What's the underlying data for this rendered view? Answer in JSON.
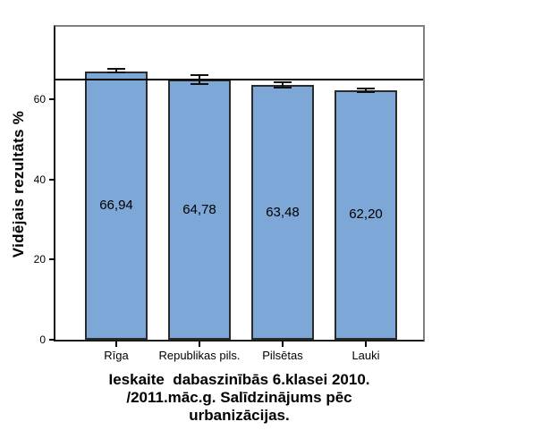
{
  "figure": {
    "background": "#ffffff"
  },
  "chart_data": {
    "type": "bar",
    "categories": [
      "Rīga",
      "Republikas pils.",
      "Pilsētas",
      "Lauki"
    ],
    "values": [
      66.94,
      64.78,
      63.48,
      62.2
    ],
    "value_labels": [
      "66,94",
      "64,78",
      "63,48",
      "62,20"
    ],
    "errors": [
      0.7,
      1.3,
      0.9,
      0.7
    ],
    "title": "Ieskaite dabaszinībās 6.klasei 2010./2011.māc.g. Salīdzinājums pēc urbanizācijas.",
    "title_lines": [
      "Ieskaite  dabaszinībās 6.klasei 2010.",
      "/2011.māc.g. Salīdzinājums pēc",
      "urbanizācijas."
    ],
    "ylabel": "Vidējais rezultāts %",
    "xlabel": "",
    "yticks": [
      0,
      20,
      40,
      60
    ],
    "ylim": [
      0,
      78
    ],
    "reference_line": 64.8,
    "grid": false,
    "legend": false,
    "colors": {
      "bar_fill": "#7CA7D6",
      "bar_border": "#2b2b2b",
      "axis": "#000000",
      "frame": "#7f7f7f",
      "reference_line": "#000000",
      "error_bar": "#111111",
      "text": "#000000"
    }
  }
}
